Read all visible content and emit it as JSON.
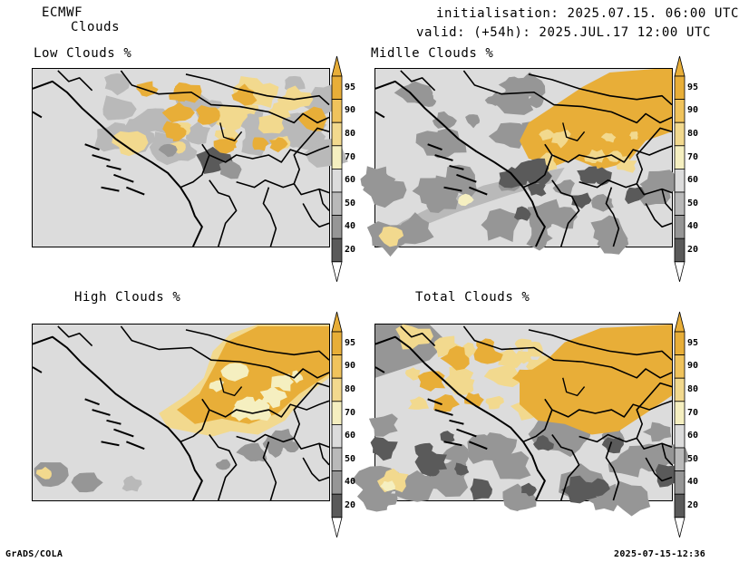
{
  "header": {
    "model": "ECMWF",
    "field": "Clouds",
    "init": "initialisation: 2025.07.15. 06:00 UTC",
    "valid": "valid: (+54h): 2025.JUL.17 12:00 UTC"
  },
  "panels": [
    {
      "id": "low",
      "title": "Low Clouds %"
    },
    {
      "id": "mid",
      "title": "Midlle Clouds %"
    },
    {
      "id": "high",
      "title": "High Clouds %"
    },
    {
      "id": "total",
      "title": "Total Clouds %"
    }
  ],
  "colorbar": {
    "levels": [
      "95",
      "90",
      "80",
      "70",
      "60",
      "50",
      "40",
      "20"
    ],
    "colors": {
      "c95": "#e8ae38",
      "c90": "#f0c35c",
      "c80": "#f2d98e",
      "c70": "#f5efc0",
      "c60": "#dcdcdc",
      "c50": "#b9b9b9",
      "c40": "#969696",
      "c20": "#5a5a5a",
      "c0": "#ffffff"
    }
  },
  "footer": {
    "left": "GrADS/COLA",
    "right": "2025-07-15-12:36"
  }
}
